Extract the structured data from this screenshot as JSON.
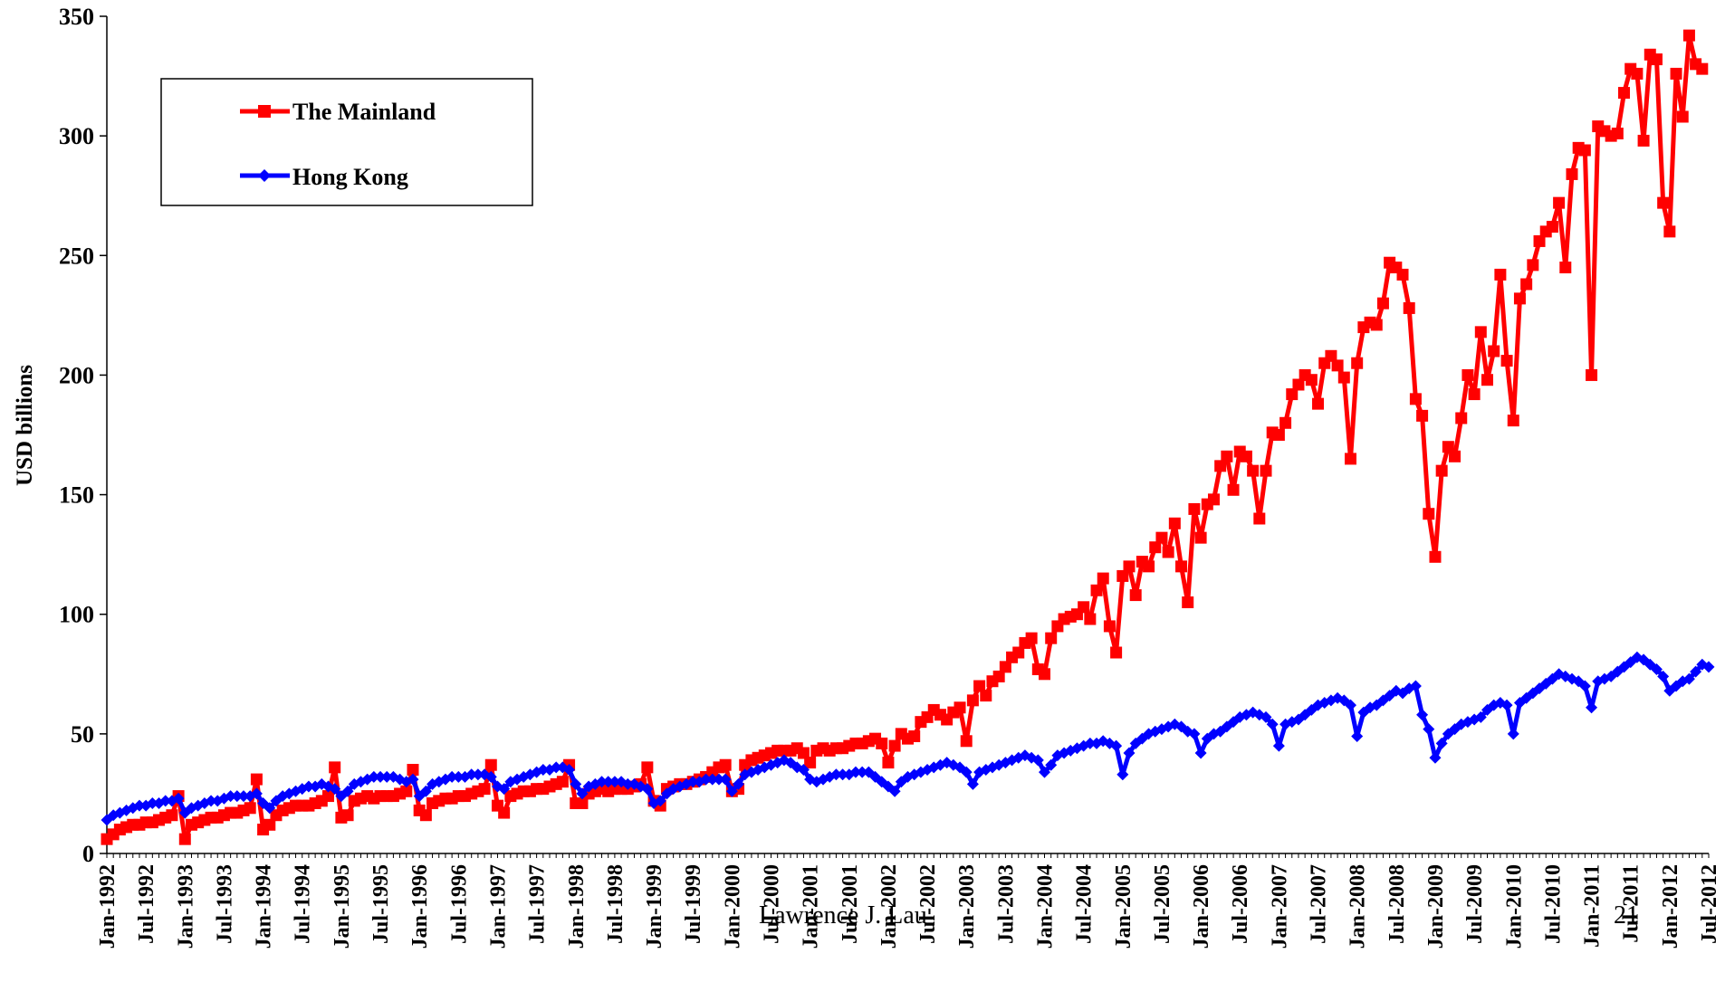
{
  "chart_data": {
    "type": "line",
    "ylabel": "USD billions",
    "xlabel": "",
    "ylim": [
      0,
      350
    ],
    "y_ticks": [
      "0",
      "50",
      "100",
      "150",
      "200",
      "250",
      "300",
      "350"
    ],
    "x_tick_labels": [
      "Jan-1992",
      "Jul-1992",
      "Jan-1993",
      "Jul-1993",
      "Jan-1994",
      "Jul-1994",
      "Jan-1995",
      "Jul-1995",
      "Jan-1996",
      "Jul-1996",
      "Jan-1997",
      "Jul-1997",
      "Jan-1998",
      "Jul-1998",
      "Jan-1999",
      "Jul-1999",
      "Jan-2000",
      "Jul-2000",
      "Jan-2001",
      "Jul-2001",
      "Jan-2002",
      "Jul-2002",
      "Jan-2003",
      "Jul-2003",
      "Jan-2004",
      "Jul-2004",
      "Jan-2005",
      "Jul-2005",
      "Jan-2006",
      "Jul-2006",
      "Jan-2007",
      "Jul-2007",
      "Jan-2008",
      "Jul-2008",
      "Jan-2009",
      "Jul-2009",
      "Jan-2010",
      "Jul-2010",
      "Jan-2011",
      "Jul-2011",
      "Jan-2012",
      "Jul-2012"
    ],
    "x_start": "Jan-1992",
    "legend_position": "top-left",
    "grid": false,
    "series": [
      {
        "name": "The Mainland",
        "color": "#ff0000",
        "marker": "square",
        "values": [
          6,
          8,
          10,
          11,
          12,
          12,
          13,
          13,
          14,
          15,
          16,
          24,
          6,
          12,
          13,
          14,
          15,
          15,
          16,
          17,
          17,
          18,
          19,
          31,
          10,
          12,
          16,
          18,
          19,
          20,
          20,
          20,
          21,
          22,
          24,
          36,
          15,
          16,
          22,
          23,
          24,
          23,
          24,
          24,
          24,
          25,
          26,
          35,
          18,
          16,
          21,
          22,
          23,
          23,
          24,
          24,
          25,
          26,
          27,
          37,
          20,
          17,
          24,
          25,
          26,
          26,
          27,
          27,
          28,
          29,
          30,
          37,
          21,
          21,
          25,
          26,
          27,
          26,
          27,
          27,
          27,
          28,
          29,
          36,
          22,
          20,
          27,
          28,
          29,
          29,
          30,
          31,
          32,
          34,
          36,
          37,
          26,
          27,
          37,
          39,
          40,
          41,
          42,
          43,
          43,
          43,
          44,
          42,
          38,
          43,
          44,
          43,
          44,
          44,
          45,
          46,
          46,
          47,
          48,
          46,
          38,
          45,
          50,
          48,
          49,
          55,
          57,
          60,
          58,
          56,
          59,
          61,
          47,
          64,
          70,
          66,
          72,
          74,
          78,
          82,
          84,
          88,
          90,
          77,
          75,
          90,
          95,
          98,
          99,
          100,
          103,
          98,
          110,
          115,
          95,
          84,
          116,
          120,
          108,
          122,
          120,
          128,
          132,
          126,
          138,
          120,
          105,
          144,
          132,
          146,
          148,
          162,
          166,
          152,
          168,
          166,
          160,
          140,
          160,
          176,
          175,
          180,
          192,
          196,
          200,
          198,
          188,
          205,
          208,
          204,
          199,
          165,
          205,
          220,
          222,
          221,
          230,
          247,
          245,
          242,
          228,
          190,
          183,
          142,
          124,
          160,
          170,
          166,
          182,
          200,
          192,
          218,
          198,
          210,
          242,
          206,
          181,
          232,
          238,
          246,
          256,
          260,
          262,
          272,
          245,
          284,
          295,
          294,
          200,
          304,
          302,
          300,
          301,
          318,
          328,
          326,
          298,
          334,
          332,
          272,
          260,
          326,
          308,
          342,
          330,
          328
        ]
      },
      {
        "name": "Hong Kong",
        "color": "#0000ff",
        "marker": "diamond",
        "values": [
          14,
          16,
          17,
          18,
          19,
          20,
          20,
          21,
          21,
          22,
          22,
          23,
          17,
          19,
          20,
          21,
          22,
          22,
          23,
          24,
          24,
          24,
          24,
          25,
          21,
          19,
          22,
          24,
          25,
          26,
          27,
          28,
          28,
          29,
          28,
          27,
          24,
          26,
          29,
          30,
          31,
          32,
          32,
          32,
          32,
          31,
          30,
          31,
          24,
          26,
          29,
          30,
          31,
          32,
          32,
          32,
          33,
          33,
          33,
          32,
          28,
          27,
          30,
          31,
          32,
          33,
          34,
          35,
          35,
          36,
          36,
          35,
          29,
          25,
          28,
          29,
          30,
          30,
          30,
          30,
          29,
          29,
          28,
          27,
          21,
          22,
          25,
          27,
          28,
          29,
          30,
          30,
          31,
          31,
          31,
          31,
          26,
          29,
          33,
          34,
          35,
          36,
          37,
          38,
          39,
          38,
          36,
          35,
          31,
          30,
          31,
          32,
          33,
          33,
          33,
          34,
          34,
          34,
          32,
          30,
          28,
          26,
          30,
          32,
          33,
          34,
          35,
          36,
          37,
          38,
          37,
          36,
          34,
          29,
          34,
          35,
          36,
          37,
          38,
          39,
          40,
          41,
          40,
          39,
          34,
          37,
          41,
          42,
          43,
          44,
          45,
          46,
          46,
          47,
          46,
          45,
          33,
          42,
          46,
          48,
          50,
          51,
          52,
          53,
          54,
          53,
          51,
          50,
          42,
          48,
          50,
          51,
          53,
          55,
          57,
          58,
          59,
          58,
          57,
          54,
          45,
          54,
          55,
          56,
          58,
          60,
          62,
          63,
          64,
          65,
          64,
          62,
          49,
          59,
          61,
          62,
          64,
          66,
          68,
          67,
          69,
          70,
          58,
          52,
          40,
          46,
          50,
          52,
          54,
          55,
          56,
          57,
          60,
          62,
          63,
          62,
          50,
          63,
          65,
          67,
          69,
          71,
          73,
          75,
          74,
          73,
          72,
          70,
          61,
          72,
          73,
          74,
          76,
          78,
          80,
          82,
          81,
          79,
          77,
          74,
          68,
          70,
          72,
          73,
          76,
          79,
          78
        ]
      }
    ]
  },
  "footer": {
    "author": "Lawrence J. Lau",
    "page_number": "21"
  }
}
